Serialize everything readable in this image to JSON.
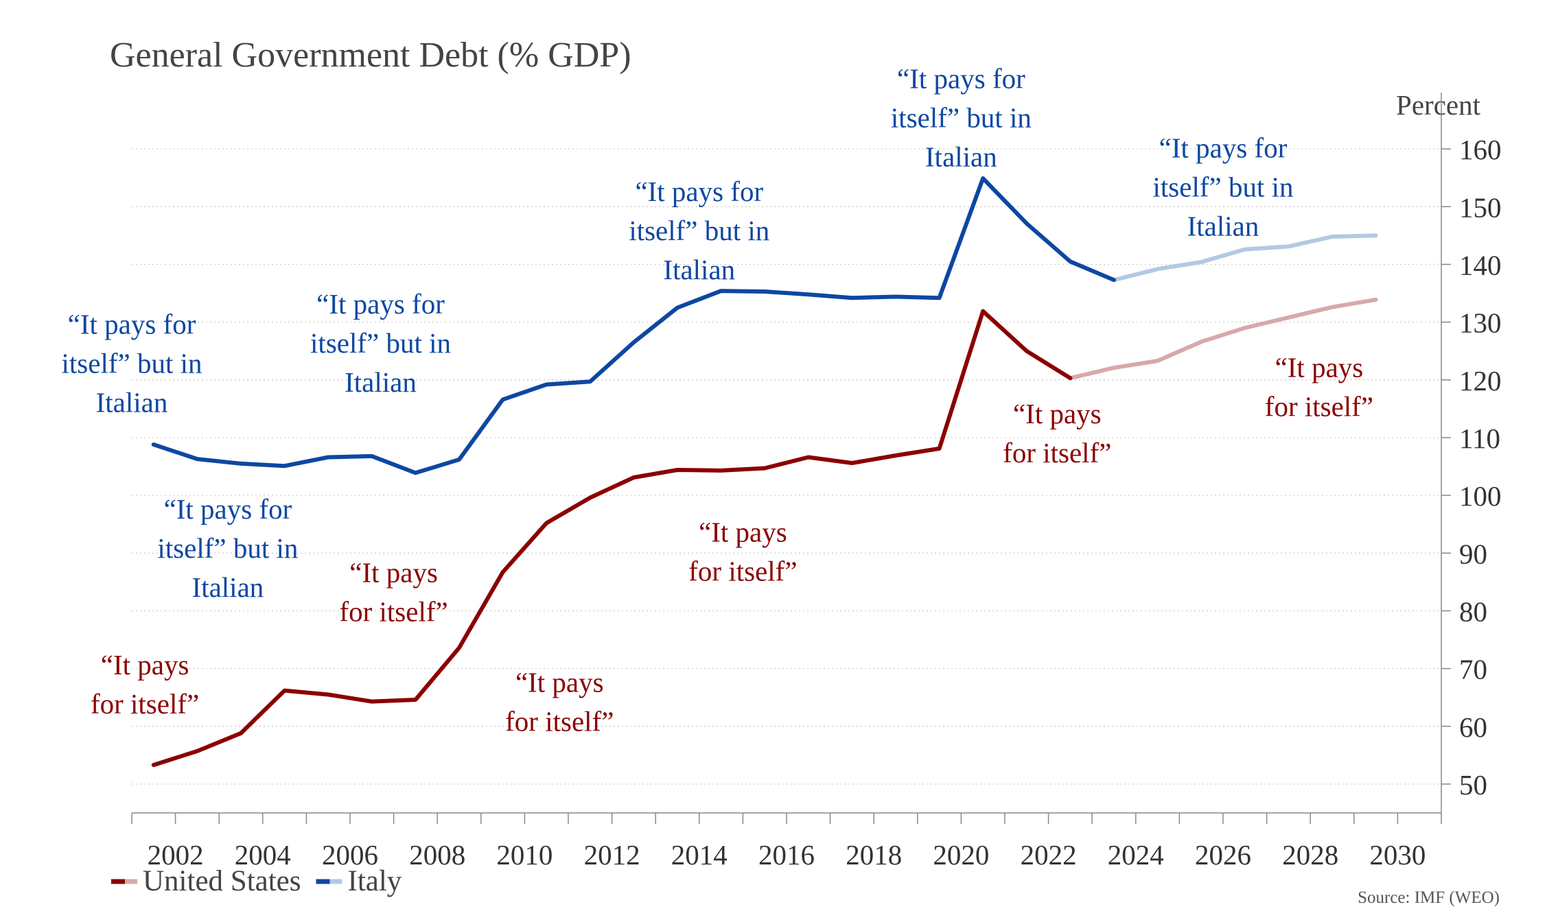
{
  "chart_data": {
    "type": "line",
    "title": "General Government Debt (% GDP)",
    "ylabel": "Percent",
    "source": "Source: IMF (WEO)",
    "xlim": [
      2001,
      2031
    ],
    "ylim": [
      45,
      165
    ],
    "x_ticks": [
      "2002",
      "2004",
      "2006",
      "2008",
      "2010",
      "2012",
      "2014",
      "2016",
      "2018",
      "2020",
      "2022",
      "2024",
      "2026",
      "2028",
      "2030"
    ],
    "y_ticks": [
      "50",
      "60",
      "70",
      "80",
      "90",
      "100",
      "110",
      "120",
      "130",
      "140",
      "150",
      "160"
    ],
    "grid": true,
    "legend_position": "bottom-left",
    "series": [
      {
        "name": "United States",
        "color": "#8b0000",
        "forecast_color": "#d8a8aa",
        "forecast_from": 2022.5,
        "x": [
          2001.5,
          2002.5,
          2003.5,
          2004.5,
          2005.5,
          2006.5,
          2007.5,
          2008.5,
          2009.5,
          2010.5,
          2011.5,
          2012.5,
          2013.5,
          2014.5,
          2015.5,
          2016.5,
          2017.5,
          2018.5,
          2019.5,
          2020.5,
          2021.5,
          2022.5,
          2023.5,
          2024.5,
          2025.5,
          2026.5,
          2027.5,
          2028.5,
          2029.5
        ],
        "values": [
          53.3,
          55.7,
          58.8,
          66.2,
          65.5,
          64.3,
          64.6,
          73.6,
          86.7,
          95.2,
          99.6,
          103.1,
          104.4,
          104.3,
          104.7,
          106.6,
          105.6,
          106.9,
          108.1,
          131.9,
          125.0,
          120.3,
          122.1,
          123.3,
          126.6,
          129.0,
          130.8,
          132.6,
          133.9
        ]
      },
      {
        "name": "Italy",
        "color": "#0d47a1",
        "forecast_color": "#b3c8e3",
        "forecast_from": 2023.5,
        "x": [
          2001.5,
          2002.5,
          2003.5,
          2004.5,
          2005.5,
          2006.5,
          2007.5,
          2008.5,
          2009.5,
          2010.5,
          2011.5,
          2012.5,
          2013.5,
          2014.5,
          2015.5,
          2016.5,
          2017.5,
          2018.5,
          2019.5,
          2020.5,
          2021.5,
          2022.5,
          2023.5,
          2024.5,
          2025.5,
          2026.5,
          2027.5,
          2028.5,
          2029.5
        ],
        "values": [
          108.8,
          106.3,
          105.5,
          105.1,
          106.6,
          106.8,
          103.9,
          106.2,
          116.6,
          119.2,
          119.7,
          126.5,
          132.5,
          135.4,
          135.3,
          134.8,
          134.2,
          134.4,
          134.2,
          154.9,
          147.1,
          140.5,
          137.3,
          139.2,
          140.4,
          142.6,
          143.1,
          144.8,
          145.0
        ]
      }
    ],
    "annotations": [
      {
        "series": "Italy",
        "lines": [
          "“It pays for",
          "itself” but in",
          "Italian"
        ],
        "x": 2001.0,
        "y": 128.0
      },
      {
        "series": "Italy",
        "lines": [
          "“It pays for",
          "itself” but in",
          "Italian"
        ],
        "x": 2003.2,
        "y": 96.0
      },
      {
        "series": "Italy",
        "lines": [
          "“It pays for",
          "itself” but in",
          "Italian"
        ],
        "x": 2006.7,
        "y": 131.5
      },
      {
        "series": "Italy",
        "lines": [
          "“It pays for",
          "itself” but in",
          "Italian"
        ],
        "x": 2014.0,
        "y": 151.0
      },
      {
        "series": "Italy",
        "lines": [
          "“It pays for",
          "itself” but in",
          "Italian"
        ],
        "x": 2020.0,
        "y": 170.5
      },
      {
        "series": "Italy",
        "lines": [
          "“It pays for",
          "itself” but in",
          "Italian"
        ],
        "x": 2026.0,
        "y": 158.5
      },
      {
        "series": "United States",
        "lines": [
          "“It pays",
          "for itself”"
        ],
        "x": 2001.3,
        "y": 69.0
      },
      {
        "series": "United States",
        "lines": [
          "“It pays",
          "for itself”"
        ],
        "x": 2007.0,
        "y": 85.0
      },
      {
        "series": "United States",
        "lines": [
          "“It pays",
          "for itself”"
        ],
        "x": 2010.8,
        "y": 66.0
      },
      {
        "series": "United States",
        "lines": [
          "“It pays",
          "for itself”"
        ],
        "x": 2015.0,
        "y": 92.0
      },
      {
        "series": "United States",
        "lines": [
          "“It pays",
          "for itself”"
        ],
        "x": 2022.2,
        "y": 112.5
      },
      {
        "series": "United States",
        "lines": [
          "“It pays",
          "for itself”"
        ],
        "x": 2028.2,
        "y": 120.5
      }
    ]
  }
}
